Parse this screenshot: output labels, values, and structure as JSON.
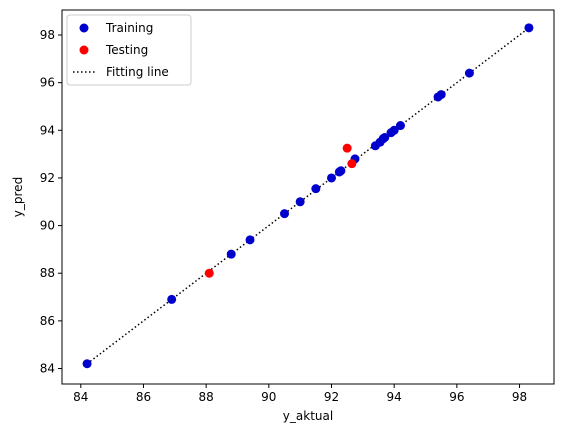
{
  "chart_data": {
    "type": "scatter",
    "xlabel": "y_aktual",
    "ylabel": "y_pred",
    "xlim": [
      83.4,
      99.1
    ],
    "ylim": [
      83.35,
      99.05
    ],
    "x_ticks": [
      84,
      86,
      88,
      90,
      92,
      94,
      96,
      98
    ],
    "y_ticks": [
      84,
      86,
      88,
      90,
      92,
      94,
      96,
      98
    ],
    "grid": false,
    "legend_position": "top-left",
    "series": [
      {
        "name": "Training",
        "kind": "scatter",
        "color": "#0000cc",
        "points": [
          [
            84.2,
            84.2
          ],
          [
            86.9,
            86.9
          ],
          [
            88.8,
            88.8
          ],
          [
            89.4,
            89.4
          ],
          [
            90.5,
            90.5
          ],
          [
            91.0,
            91.0
          ],
          [
            91.5,
            91.55
          ],
          [
            92.0,
            92.0
          ],
          [
            92.25,
            92.25
          ],
          [
            92.3,
            92.3
          ],
          [
            92.75,
            92.8
          ],
          [
            93.4,
            93.35
          ],
          [
            93.55,
            93.5
          ],
          [
            93.65,
            93.65
          ],
          [
            93.7,
            93.7
          ],
          [
            93.9,
            93.9
          ],
          [
            94.0,
            94.0
          ],
          [
            94.2,
            94.2
          ],
          [
            95.4,
            95.4
          ],
          [
            95.5,
            95.5
          ],
          [
            96.4,
            96.4
          ],
          [
            98.3,
            98.3
          ]
        ]
      },
      {
        "name": "Testing",
        "kind": "scatter",
        "color": "#ff0000",
        "points": [
          [
            88.1,
            88.0
          ],
          [
            92.5,
            93.25
          ],
          [
            92.65,
            92.6
          ]
        ]
      },
      {
        "name": "Fitting line",
        "kind": "line",
        "style": "dotted",
        "color": "#000000",
        "points": [
          [
            84.2,
            84.2
          ],
          [
            98.3,
            98.3
          ]
        ]
      }
    ]
  }
}
